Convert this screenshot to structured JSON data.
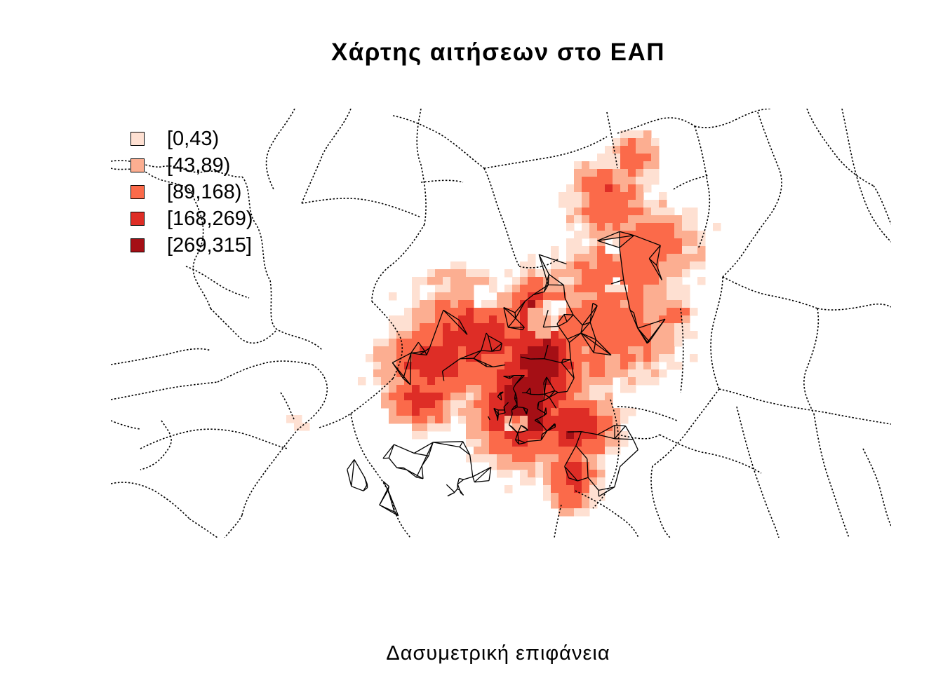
{
  "title": "Χάρτης αιτήσεων στο ΕΑΠ",
  "subtitle": "Δασυμετρική επιφάνεια",
  "legend": {
    "items": [
      {
        "label": "[0,43)",
        "color": "#FEE0D2"
      },
      {
        "label": "[43,89)",
        "color": "#FCAE91"
      },
      {
        "label": "[89,168)",
        "color": "#FB6A4A"
      },
      {
        "label": "[168,269)",
        "color": "#DE2D26"
      },
      {
        "label": "[269,315]",
        "color": "#A50F15"
      }
    ]
  },
  "map": {
    "boundary_style": "dotted",
    "boundary_color": "#000000",
    "surface": "dasymetric raster of applications"
  }
}
